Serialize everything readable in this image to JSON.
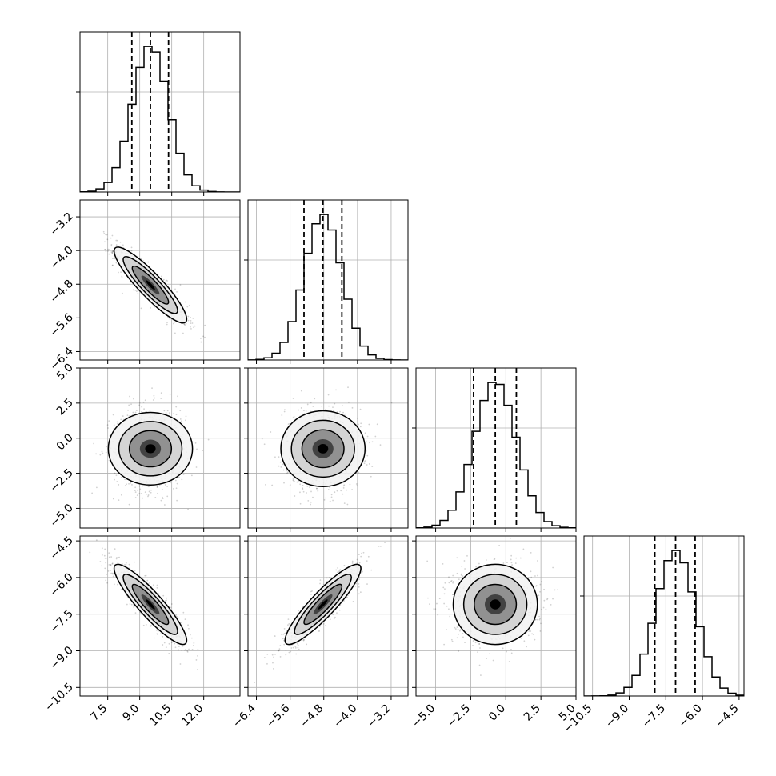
{
  "chart_data": {
    "type": "corner",
    "params": [
      {
        "hist_range": [
          6.2,
          13.7
        ],
        "quantiles": [
          8.63,
          9.5,
          10.35
        ],
        "center": 9.5,
        "sigma": 0.85,
        "ticks": [
          7.5,
          9.0,
          10.5,
          12.0
        ],
        "tick_labels": [
          "7.5",
          "9.0",
          "10.5",
          "12.0"
        ]
      },
      {
        "hist_range": [
          -6.6,
          -2.8
        ],
        "quantiles": [
          -5.27,
          -4.82,
          -4.37
        ],
        "center": -4.82,
        "sigma": 0.45,
        "ticks": [
          -6.4,
          -5.6,
          -4.8,
          -4.0,
          -3.2
        ],
        "tick_labels": [
          "−6.4",
          "−5.6",
          "−4.8",
          "−4.0",
          "−3.2"
        ]
      },
      {
        "hist_range": [
          -6.4,
          5.0
        ],
        "quantiles": [
          -2.3,
          -0.75,
          0.75
        ],
        "center": -0.75,
        "sigma": 1.5,
        "ticks": [
          -5.0,
          -2.5,
          0.0,
          2.5,
          5.0
        ],
        "tick_labels": [
          "−5.0",
          "−2.5",
          "0.0",
          "2.5",
          "5.0"
        ]
      },
      {
        "hist_range": [
          -10.85,
          -4.3
        ],
        "quantiles": [
          -7.95,
          -7.1,
          -6.3
        ],
        "center": -7.1,
        "sigma": 0.82,
        "ticks": [
          -10.5,
          -9.0,
          -7.5,
          -6.0,
          -4.5
        ],
        "tick_labels": [
          "−10.5",
          "−9.0",
          "−7.5",
          "−6.0",
          "−4.5"
        ]
      }
    ],
    "correlations": [
      [
        1,
        -0.9,
        0,
        -0.9
      ],
      [
        -0.9,
        1,
        0,
        0.9
      ],
      [
        0,
        0,
        1,
        0
      ],
      [
        -0.9,
        0.9,
        0,
        1
      ]
    ],
    "histogram_bins": 20,
    "hist_y_ticks_count": 3,
    "samples_note": "",
    "grid": true,
    "colors": {
      "line": "#000000",
      "grid": "#b0b0b0",
      "points": "#000000"
    }
  }
}
